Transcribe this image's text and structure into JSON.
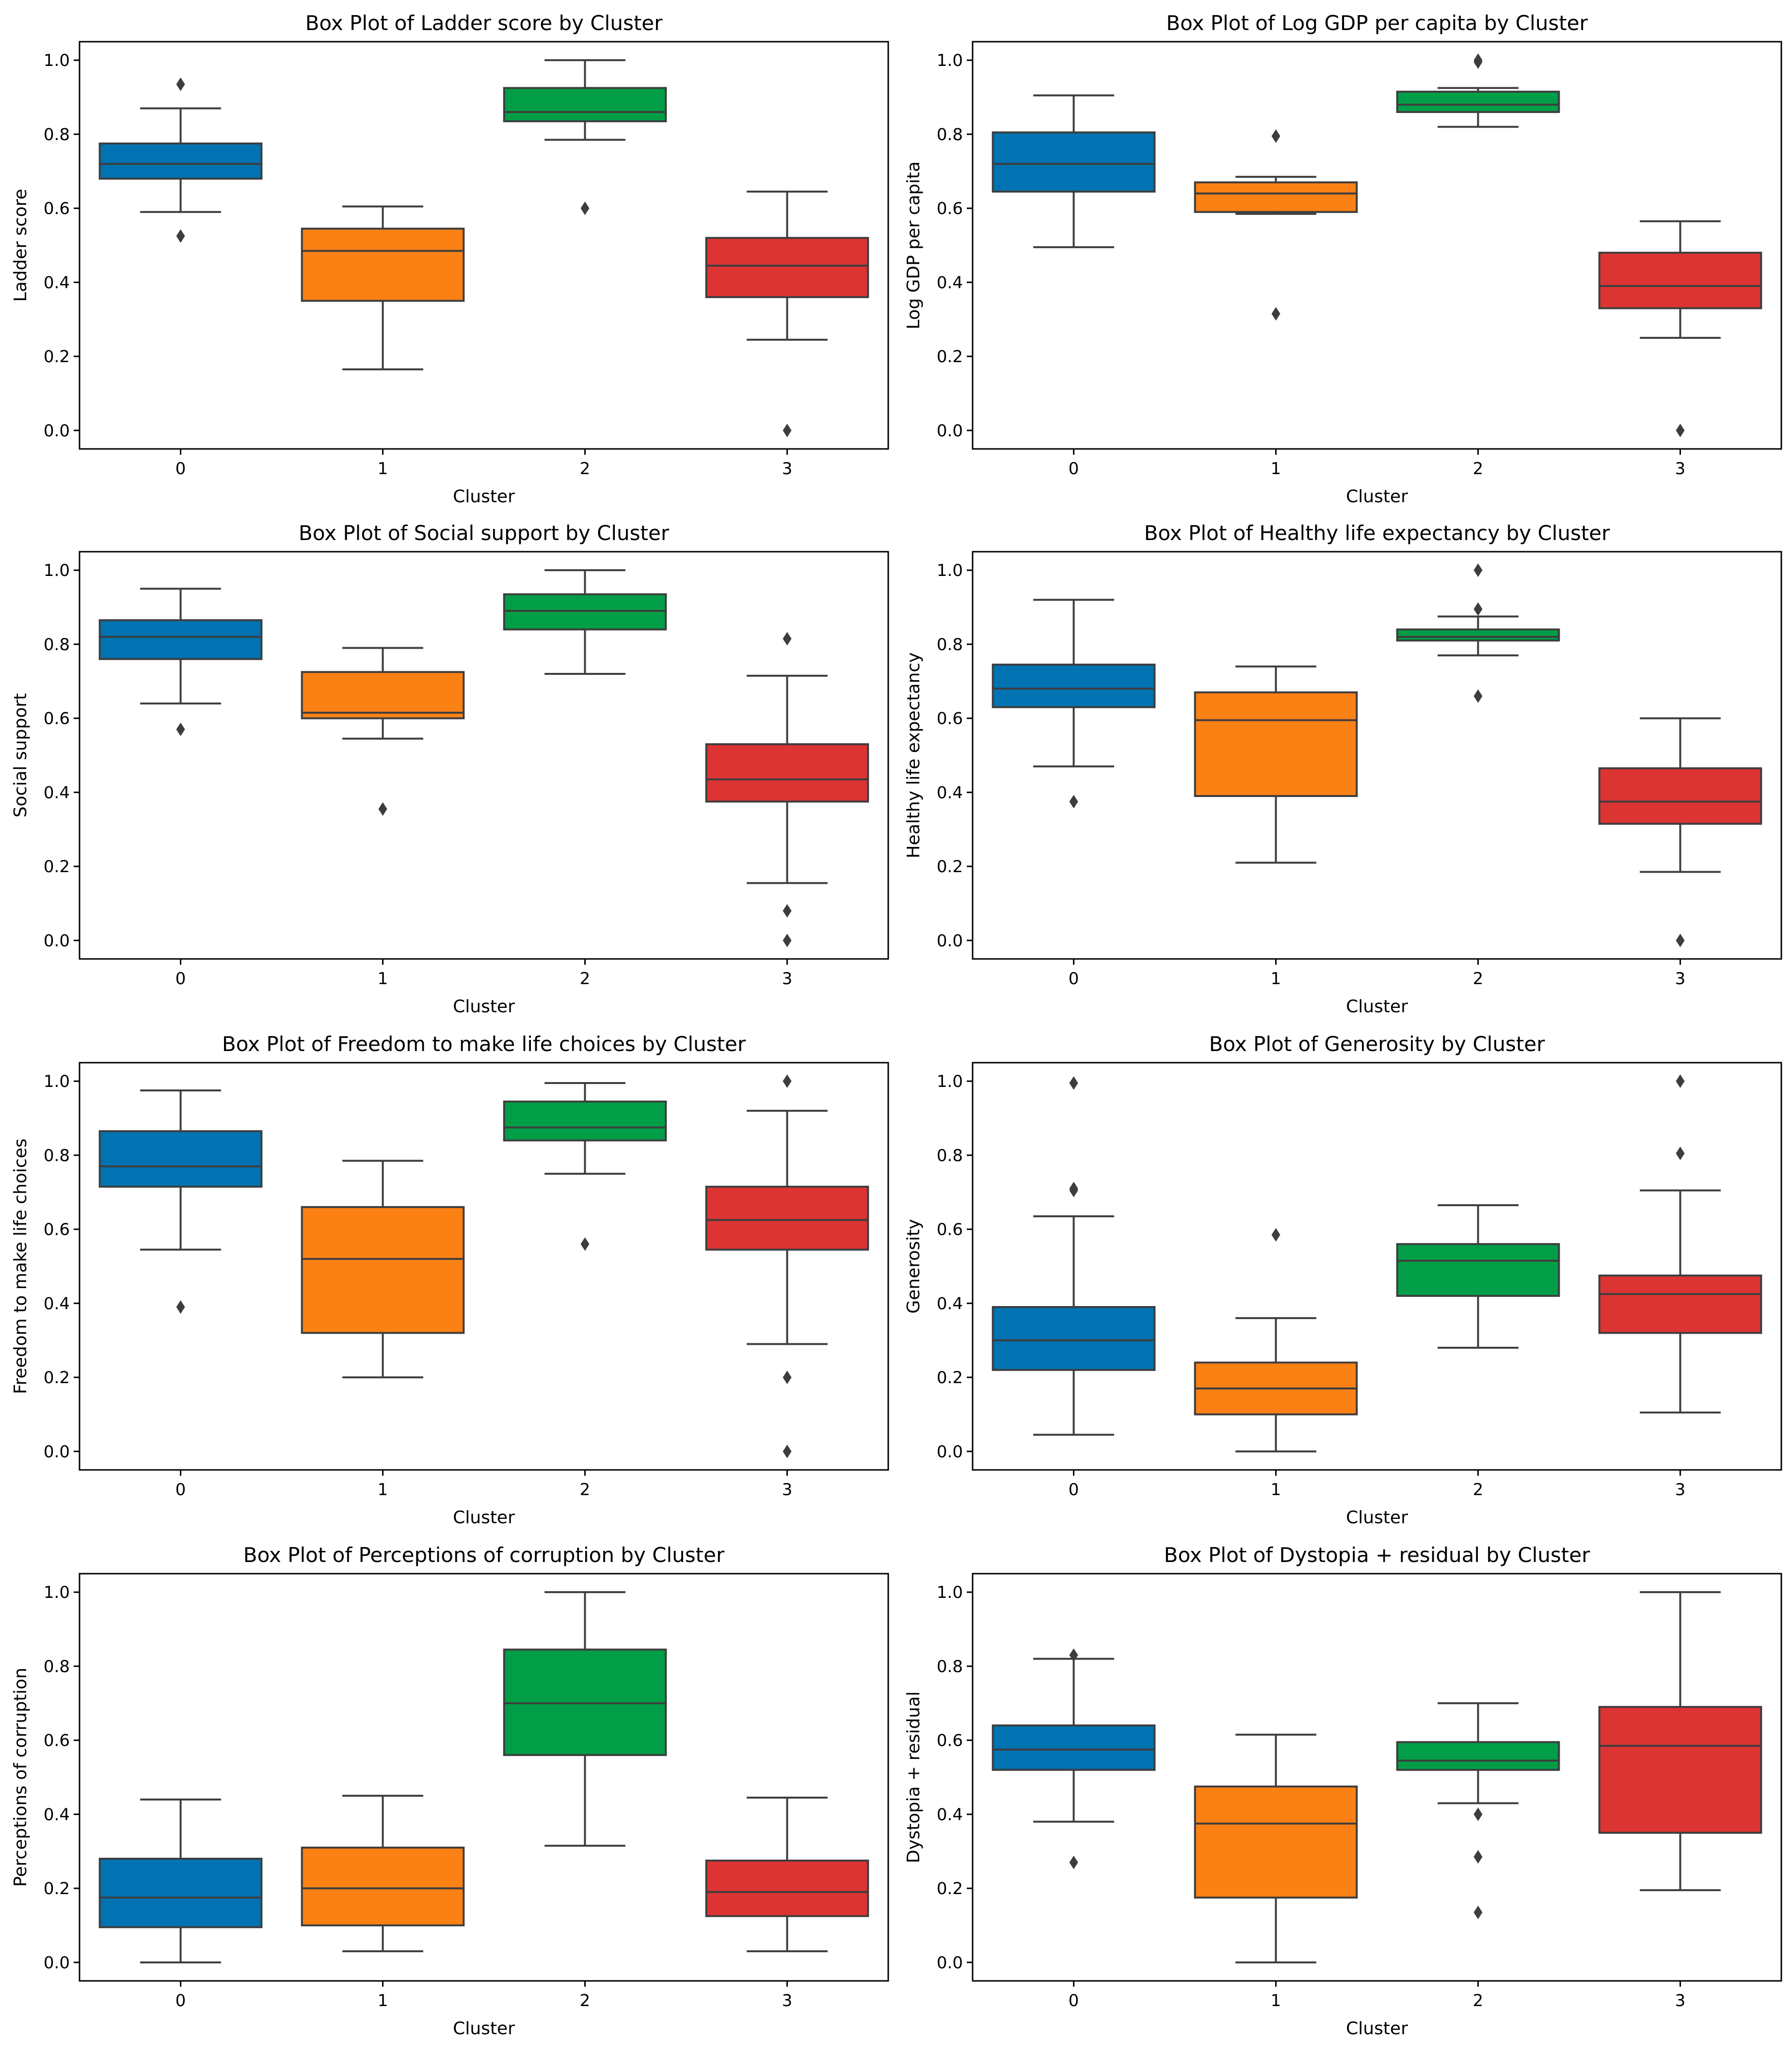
{
  "colors": {
    "0": "#0173b2",
    "1": "#fc8115",
    "2": "#029e47",
    "3": "#dc3433",
    "stroke": "#3d3d3d"
  },
  "chart_data": [
    {
      "type": "box",
      "title": "Box Plot of Ladder score by Cluster",
      "xlabel": "Cluster",
      "ylabel": "Ladder score",
      "categories": [
        "0",
        "1",
        "2",
        "3"
      ],
      "ylim": [
        -0.05,
        1.05
      ],
      "yticks": [
        "0.0",
        "0.2",
        "0.4",
        "0.6",
        "0.8",
        "1.0"
      ],
      "boxes": [
        {
          "q1": 0.68,
          "median": 0.72,
          "q3": 0.775,
          "wlow": 0.59,
          "whigh": 0.87,
          "outliers": [
            0.935,
            0.525
          ]
        },
        {
          "q1": 0.35,
          "median": 0.485,
          "q3": 0.545,
          "wlow": 0.165,
          "whigh": 0.605,
          "outliers": []
        },
        {
          "q1": 0.835,
          "median": 0.86,
          "q3": 0.925,
          "wlow": 0.785,
          "whigh": 1.0,
          "outliers": [
            0.6
          ]
        },
        {
          "q1": 0.36,
          "median": 0.445,
          "q3": 0.52,
          "wlow": 0.245,
          "whigh": 0.645,
          "outliers": [
            0.0
          ]
        }
      ]
    },
    {
      "type": "box",
      "title": "Box Plot of Log GDP per capita by Cluster",
      "xlabel": "Cluster",
      "ylabel": "Log GDP per capita",
      "categories": [
        "0",
        "1",
        "2",
        "3"
      ],
      "ylim": [
        -0.05,
        1.05
      ],
      "yticks": [
        "0.0",
        "0.2",
        "0.4",
        "0.6",
        "0.8",
        "1.0"
      ],
      "boxes": [
        {
          "q1": 0.645,
          "median": 0.72,
          "q3": 0.805,
          "wlow": 0.495,
          "whigh": 0.905,
          "outliers": []
        },
        {
          "q1": 0.59,
          "median": 0.64,
          "q3": 0.67,
          "wlow": 0.585,
          "whigh": 0.685,
          "outliers": [
            0.795,
            0.315
          ]
        },
        {
          "q1": 0.86,
          "median": 0.88,
          "q3": 0.915,
          "wlow": 0.82,
          "whigh": 0.925,
          "outliers": [
            0.995,
            1.0
          ]
        },
        {
          "q1": 0.33,
          "median": 0.39,
          "q3": 0.48,
          "wlow": 0.25,
          "whigh": 0.565,
          "outliers": [
            0.0
          ]
        }
      ]
    },
    {
      "type": "box",
      "title": "Box Plot of Social support by Cluster",
      "xlabel": "Cluster",
      "ylabel": "Social support",
      "categories": [
        "0",
        "1",
        "2",
        "3"
      ],
      "ylim": [
        -0.05,
        1.05
      ],
      "yticks": [
        "0.0",
        "0.2",
        "0.4",
        "0.6",
        "0.8",
        "1.0"
      ],
      "boxes": [
        {
          "q1": 0.76,
          "median": 0.82,
          "q3": 0.865,
          "wlow": 0.64,
          "whigh": 0.95,
          "outliers": [
            0.57
          ]
        },
        {
          "q1": 0.6,
          "median": 0.615,
          "q3": 0.725,
          "wlow": 0.545,
          "whigh": 0.79,
          "outliers": [
            0.355
          ]
        },
        {
          "q1": 0.84,
          "median": 0.89,
          "q3": 0.935,
          "wlow": 0.72,
          "whigh": 1.0,
          "outliers": []
        },
        {
          "q1": 0.375,
          "median": 0.435,
          "q3": 0.53,
          "wlow": 0.155,
          "whigh": 0.715,
          "outliers": [
            0.815,
            0.08,
            0.0
          ]
        }
      ]
    },
    {
      "type": "box",
      "title": "Box Plot of Healthy life expectancy by Cluster",
      "xlabel": "Cluster",
      "ylabel": "Healthy life expectancy",
      "categories": [
        "0",
        "1",
        "2",
        "3"
      ],
      "ylim": [
        -0.05,
        1.05
      ],
      "yticks": [
        "0.0",
        "0.2",
        "0.4",
        "0.6",
        "0.8",
        "1.0"
      ],
      "boxes": [
        {
          "q1": 0.63,
          "median": 0.68,
          "q3": 0.745,
          "wlow": 0.47,
          "whigh": 0.92,
          "outliers": [
            0.375
          ]
        },
        {
          "q1": 0.39,
          "median": 0.595,
          "q3": 0.67,
          "wlow": 0.21,
          "whigh": 0.74,
          "outliers": []
        },
        {
          "q1": 0.81,
          "median": 0.82,
          "q3": 0.84,
          "wlow": 0.77,
          "whigh": 0.875,
          "outliers": [
            1.0,
            0.895,
            0.66
          ]
        },
        {
          "q1": 0.315,
          "median": 0.375,
          "q3": 0.465,
          "wlow": 0.185,
          "whigh": 0.6,
          "outliers": [
            0.0
          ]
        }
      ]
    },
    {
      "type": "box",
      "title": "Box Plot of Freedom to make life choices by Cluster",
      "xlabel": "Cluster",
      "ylabel": "Freedom to make life choices",
      "categories": [
        "0",
        "1",
        "2",
        "3"
      ],
      "ylim": [
        -0.05,
        1.05
      ],
      "yticks": [
        "0.0",
        "0.2",
        "0.4",
        "0.6",
        "0.8",
        "1.0"
      ],
      "boxes": [
        {
          "q1": 0.715,
          "median": 0.77,
          "q3": 0.865,
          "wlow": 0.545,
          "whigh": 0.975,
          "outliers": [
            0.39
          ]
        },
        {
          "q1": 0.32,
          "median": 0.52,
          "q3": 0.66,
          "wlow": 0.2,
          "whigh": 0.785,
          "outliers": []
        },
        {
          "q1": 0.84,
          "median": 0.875,
          "q3": 0.945,
          "wlow": 0.75,
          "whigh": 0.995,
          "outliers": [
            0.56
          ]
        },
        {
          "q1": 0.545,
          "median": 0.625,
          "q3": 0.715,
          "wlow": 0.29,
          "whigh": 0.92,
          "outliers": [
            1.0,
            0.2,
            0.0
          ]
        }
      ]
    },
    {
      "type": "box",
      "title": "Box Plot of Generosity by Cluster",
      "xlabel": "Cluster",
      "ylabel": "Generosity",
      "categories": [
        "0",
        "1",
        "2",
        "3"
      ],
      "ylim": [
        -0.05,
        1.05
      ],
      "yticks": [
        "0.0",
        "0.2",
        "0.4",
        "0.6",
        "0.8",
        "1.0"
      ],
      "boxes": [
        {
          "q1": 0.22,
          "median": 0.3,
          "q3": 0.39,
          "wlow": 0.045,
          "whigh": 0.635,
          "outliers": [
            0.995,
            0.71,
            0.705
          ]
        },
        {
          "q1": 0.1,
          "median": 0.17,
          "q3": 0.24,
          "wlow": 0.0,
          "whigh": 0.36,
          "outliers": [
            0.585
          ]
        },
        {
          "q1": 0.42,
          "median": 0.515,
          "q3": 0.56,
          "wlow": 0.28,
          "whigh": 0.665,
          "outliers": []
        },
        {
          "q1": 0.32,
          "median": 0.425,
          "q3": 0.475,
          "wlow": 0.105,
          "whigh": 0.705,
          "outliers": [
            1.0,
            0.805
          ]
        }
      ]
    },
    {
      "type": "box",
      "title": "Box Plot of Perceptions of corruption by Cluster",
      "xlabel": "Cluster",
      "ylabel": "Perceptions of corruption",
      "categories": [
        "0",
        "1",
        "2",
        "3"
      ],
      "ylim": [
        -0.05,
        1.05
      ],
      "yticks": [
        "0.0",
        "0.2",
        "0.4",
        "0.6",
        "0.8",
        "1.0"
      ],
      "boxes": [
        {
          "q1": 0.095,
          "median": 0.175,
          "q3": 0.28,
          "wlow": 0.0,
          "whigh": 0.44,
          "outliers": []
        },
        {
          "q1": 0.1,
          "median": 0.2,
          "q3": 0.31,
          "wlow": 0.03,
          "whigh": 0.45,
          "outliers": []
        },
        {
          "q1": 0.56,
          "median": 0.7,
          "q3": 0.845,
          "wlow": 0.315,
          "whigh": 1.0,
          "outliers": []
        },
        {
          "q1": 0.125,
          "median": 0.19,
          "q3": 0.275,
          "wlow": 0.03,
          "whigh": 0.445,
          "outliers": []
        }
      ]
    },
    {
      "type": "box",
      "title": "Box Plot of Dystopia + residual by Cluster",
      "xlabel": "Cluster",
      "ylabel": "Dystopia + residual",
      "categories": [
        "0",
        "1",
        "2",
        "3"
      ],
      "ylim": [
        -0.05,
        1.05
      ],
      "yticks": [
        "0.0",
        "0.2",
        "0.4",
        "0.6",
        "0.8",
        "1.0"
      ],
      "boxes": [
        {
          "q1": 0.52,
          "median": 0.575,
          "q3": 0.64,
          "wlow": 0.38,
          "whigh": 0.82,
          "outliers": [
            0.83,
            0.27
          ]
        },
        {
          "q1": 0.175,
          "median": 0.375,
          "q3": 0.475,
          "wlow": 0.0,
          "whigh": 0.615,
          "outliers": []
        },
        {
          "q1": 0.52,
          "median": 0.545,
          "q3": 0.595,
          "wlow": 0.43,
          "whigh": 0.7,
          "outliers": [
            0.4,
            0.285,
            0.135
          ]
        },
        {
          "q1": 0.35,
          "median": 0.585,
          "q3": 0.69,
          "wlow": 0.195,
          "whigh": 1.0,
          "outliers": []
        }
      ]
    }
  ]
}
